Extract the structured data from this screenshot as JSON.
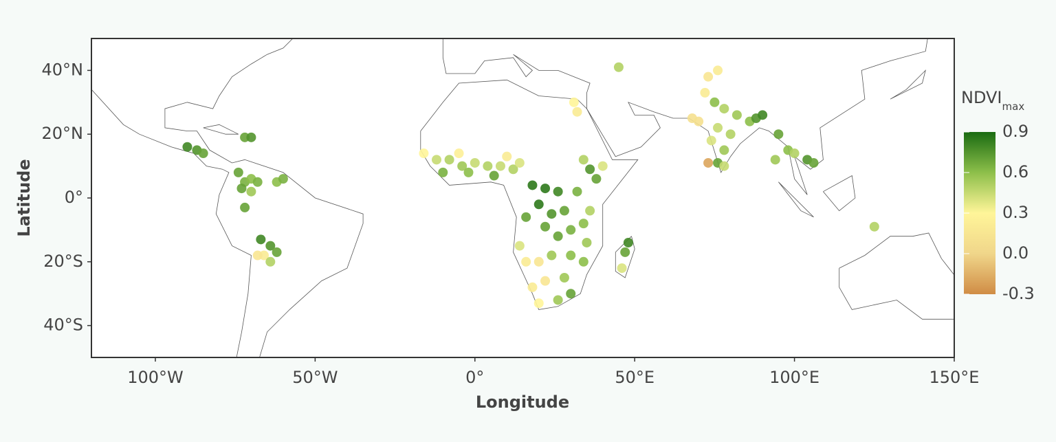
{
  "chart_data": {
    "type": "scatter",
    "x_label": "Longitude",
    "y_label": "Latitude",
    "xlim": [
      -120,
      150
    ],
    "ylim": [
      -50,
      50
    ],
    "xticks": [
      {
        "value": -100,
        "label": "100°W"
      },
      {
        "value": -50,
        "label": "50°W"
      },
      {
        "value": 0,
        "label": "0°"
      },
      {
        "value": 50,
        "label": "50°E"
      },
      {
        "value": 100,
        "label": "100°E"
      },
      {
        "value": 150,
        "label": "150°E"
      }
    ],
    "yticks": [
      {
        "value": 40,
        "label": "40°N"
      },
      {
        "value": 20,
        "label": "20°N"
      },
      {
        "value": 0,
        "label": "0°"
      },
      {
        "value": -20,
        "label": "20°S"
      },
      {
        "value": -40,
        "label": "40°S"
      }
    ],
    "colorbar": {
      "title": "NDVI",
      "title_sub": "max",
      "clim": [
        -0.3,
        0.9
      ],
      "ticks": [
        0.9,
        0.6,
        0.3,
        {
          "value": 0,
          "label": "0.0"
        },
        -0.3
      ],
      "colorscale": [
        "#d08c45",
        "#f0d68a",
        "#fff599",
        "#8dbf4a",
        "#1a6b12"
      ]
    },
    "x": [
      -90,
      -87,
      -85,
      -72,
      -70,
      -74,
      -72,
      -70,
      -73,
      -68,
      -70,
      -62,
      -60,
      -72,
      -67,
      -64,
      -66,
      -68,
      -62,
      -64,
      -16,
      -12,
      -8,
      -4,
      0,
      4,
      8,
      12,
      -10,
      -2,
      6,
      14,
      10,
      -5,
      18,
      22,
      26,
      20,
      24,
      28,
      16,
      22,
      30,
      26,
      34,
      36,
      32,
      38,
      36,
      40,
      34,
      14,
      16,
      20,
      24,
      30,
      34,
      28,
      22,
      18,
      30,
      26,
      20,
      35,
      47,
      46,
      48,
      31,
      32,
      45,
      72,
      75,
      78,
      82,
      86,
      88,
      76,
      80,
      74,
      78,
      76,
      78,
      70,
      90,
      68,
      73,
      76,
      95,
      98,
      100,
      104,
      106,
      94,
      73,
      125
    ],
    "y": [
      16,
      15,
      14,
      19,
      19,
      8,
      5,
      6,
      3,
      5,
      2,
      5,
      6,
      -3,
      -13,
      -15,
      -18,
      -18,
      -17,
      -20,
      14,
      12,
      12,
      10,
      11,
      10,
      10,
      9,
      8,
      8,
      7,
      11,
      13,
      14,
      4,
      3,
      2,
      -2,
      -5,
      -4,
      -6,
      -9,
      -10,
      -12,
      -8,
      -4,
      2,
      6,
      9,
      10,
      12,
      -15,
      -20,
      -20,
      -18,
      -18,
      -20,
      -25,
      -26,
      -28,
      -30,
      -32,
      -33,
      -14,
      -17,
      -22,
      -14,
      30,
      27,
      41,
      33,
      30,
      28,
      26,
      24,
      25,
      22,
      20,
      18,
      15,
      11,
      10,
      24,
      26,
      25,
      38,
      40,
      20,
      15,
      14,
      12,
      11,
      12,
      11,
      -9
    ],
    "values": [
      0.8,
      0.75,
      0.7,
      0.7,
      0.75,
      0.7,
      0.65,
      0.6,
      0.7,
      0.65,
      0.55,
      0.6,
      0.65,
      0.7,
      0.8,
      0.75,
      0.2,
      0.15,
      0.7,
      0.5,
      0.3,
      0.45,
      0.5,
      0.55,
      0.45,
      0.5,
      0.45,
      0.5,
      0.65,
      0.6,
      0.7,
      0.4,
      0.2,
      0.25,
      0.85,
      0.85,
      0.8,
      0.85,
      0.75,
      0.7,
      0.7,
      0.7,
      0.65,
      0.7,
      0.6,
      0.5,
      0.65,
      0.7,
      0.75,
      0.4,
      0.5,
      0.4,
      0.2,
      0.15,
      0.55,
      0.6,
      0.6,
      0.55,
      0.15,
      0.2,
      0.7,
      0.55,
      0.3,
      0.55,
      0.7,
      0.4,
      0.8,
      0.3,
      0.2,
      0.5,
      0.2,
      0.6,
      0.5,
      0.55,
      0.6,
      0.75,
      0.45,
      0.5,
      0.4,
      0.55,
      0.7,
      0.45,
      0.1,
      0.8,
      0.1,
      0.15,
      0.2,
      0.7,
      0.6,
      0.5,
      0.75,
      0.7,
      0.55,
      -0.2,
      0.5
    ]
  }
}
